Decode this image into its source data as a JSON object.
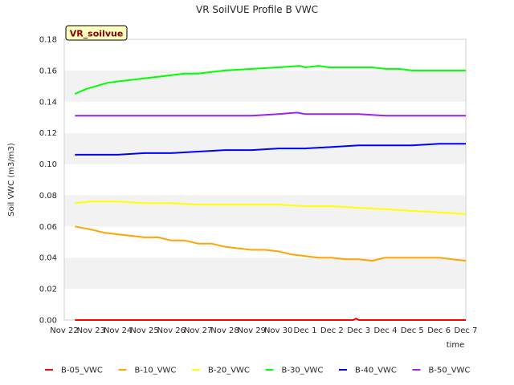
{
  "chart_data": {
    "type": "line",
    "title": "VR SoilVUE Profile B VWC",
    "badge": "VR_soilvue",
    "xlabel": "time",
    "ylabel": "Soil VWC (m3/m3)",
    "ylim": [
      0.0,
      0.18
    ],
    "yticks": [
      "0.00",
      "0.02",
      "0.04",
      "0.06",
      "0.08",
      "0.10",
      "0.12",
      "0.14",
      "0.16",
      "0.18"
    ],
    "xlim": [
      0,
      15
    ],
    "xticks": [
      "Nov 22",
      "Nov 23",
      "Nov 24",
      "Nov 25",
      "Nov 26",
      "Nov 27",
      "Nov 28",
      "Nov 29",
      "Nov 30",
      "Dec 1",
      "Dec 2",
      "Dec 3",
      "Dec 4",
      "Dec 5",
      "Dec 6",
      "Dec 7"
    ],
    "grid": "alternating horizontal bands",
    "legend": "bottom",
    "series": [
      {
        "name": "B-05_VWC",
        "color": "#ff0000",
        "x": [
          0.4,
          3,
          6,
          9,
          10.8,
          10.9,
          11.0,
          11.1,
          12,
          15.0
        ],
        "y": [
          0.0,
          0.0,
          0.0,
          0.0,
          0.0,
          0.001,
          0.0,
          0.0,
          0.0,
          0.0
        ]
      },
      {
        "name": "B-10_VWC",
        "color": "#ffa500",
        "x": [
          0.4,
          1,
          1.5,
          2,
          2.5,
          3,
          3.5,
          4,
          4.5,
          5,
          5.5,
          6,
          6.5,
          7,
          7.5,
          8,
          8.5,
          9,
          9.5,
          10,
          10.5,
          11,
          11.5,
          12,
          12.5,
          13,
          13.5,
          14,
          14.5,
          15.0
        ],
        "y": [
          0.06,
          0.058,
          0.056,
          0.055,
          0.054,
          0.053,
          0.053,
          0.051,
          0.051,
          0.049,
          0.049,
          0.047,
          0.046,
          0.045,
          0.045,
          0.044,
          0.042,
          0.041,
          0.04,
          0.04,
          0.039,
          0.039,
          0.038,
          0.04,
          0.04,
          0.04,
          0.04,
          0.04,
          0.039,
          0.038
        ]
      },
      {
        "name": "B-20_VWC",
        "color": "#ffff00",
        "x": [
          0.4,
          1,
          2,
          3,
          4,
          5,
          6,
          7,
          8,
          9,
          10,
          11,
          12,
          13,
          14,
          15.0
        ],
        "y": [
          0.075,
          0.076,
          0.076,
          0.075,
          0.075,
          0.074,
          0.074,
          0.074,
          0.074,
          0.073,
          0.073,
          0.072,
          0.071,
          0.07,
          0.069,
          0.068
        ]
      },
      {
        "name": "B-30_VWC",
        "color": "#00ff00",
        "x": [
          0.4,
          0.8,
          1.2,
          1.6,
          2,
          2.5,
          3,
          3.5,
          4,
          4.5,
          5,
          5.5,
          6,
          7,
          8,
          8.8,
          9,
          9.5,
          9.9,
          10.5,
          11,
          11.5,
          12,
          12.5,
          13,
          13.5,
          14,
          14.5,
          15.0
        ],
        "y": [
          0.145,
          0.148,
          0.15,
          0.152,
          0.153,
          0.154,
          0.155,
          0.156,
          0.157,
          0.158,
          0.158,
          0.159,
          0.16,
          0.161,
          0.162,
          0.163,
          0.162,
          0.163,
          0.162,
          0.162,
          0.162,
          0.162,
          0.161,
          0.161,
          0.16,
          0.16,
          0.16,
          0.16,
          0.16
        ]
      },
      {
        "name": "B-40_VWC",
        "color": "#0000ff",
        "x": [
          0.4,
          1,
          2,
          3,
          4,
          5,
          6,
          7,
          8,
          9,
          10,
          11,
          12,
          13,
          14,
          15.0
        ],
        "y": [
          0.106,
          0.106,
          0.106,
          0.107,
          0.107,
          0.108,
          0.109,
          0.109,
          0.11,
          0.11,
          0.111,
          0.112,
          0.112,
          0.112,
          0.113,
          0.113
        ]
      },
      {
        "name": "B-50_VWC",
        "color": "#a020f0",
        "x": [
          0.4,
          1,
          2,
          3,
          4,
          5,
          6,
          7,
          8,
          8.7,
          9,
          10,
          11,
          12,
          13,
          14,
          15.0
        ],
        "y": [
          0.131,
          0.131,
          0.131,
          0.131,
          0.131,
          0.131,
          0.131,
          0.131,
          0.132,
          0.133,
          0.132,
          0.132,
          0.132,
          0.131,
          0.131,
          0.131,
          0.131
        ]
      }
    ]
  }
}
